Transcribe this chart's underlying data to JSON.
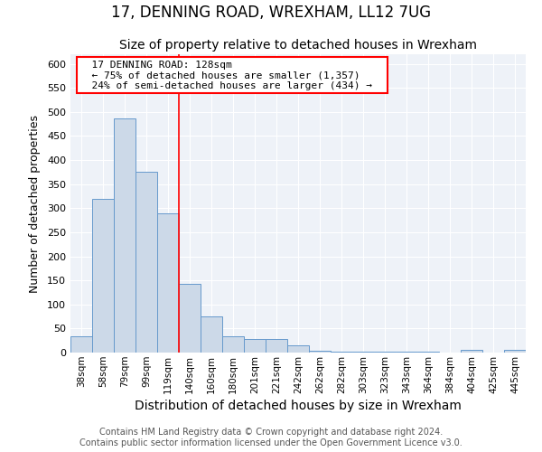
{
  "title1": "17, DENNING ROAD, WREXHAM, LL12 7UG",
  "title2": "Size of property relative to detached houses in Wrexham",
  "xlabel": "Distribution of detached houses by size in Wrexham",
  "ylabel": "Number of detached properties",
  "categories": [
    "38sqm",
    "58sqm",
    "79sqm",
    "99sqm",
    "119sqm",
    "140sqm",
    "160sqm",
    "180sqm",
    "201sqm",
    "221sqm",
    "242sqm",
    "262sqm",
    "282sqm",
    "303sqm",
    "323sqm",
    "343sqm",
    "364sqm",
    "384sqm",
    "404sqm",
    "425sqm",
    "445sqm"
  ],
  "values": [
    33,
    320,
    487,
    375,
    290,
    143,
    76,
    33,
    29,
    29,
    15,
    3,
    2,
    2,
    2,
    2,
    2,
    0,
    6,
    0,
    6
  ],
  "bar_color": "#ccd9e8",
  "bar_edge_color": "#6699cc",
  "annotation_text_line1": "17 DENNING ROAD: 128sqm",
  "annotation_text_line2": "← 75% of detached houses are smaller (1,357)",
  "annotation_text_line3": "24% of semi-detached houses are larger (434) →",
  "annotation_box_color": "white",
  "annotation_box_edge_color": "red",
  "vline_color": "red",
  "vline_x": 4.5,
  "footer_line1": "Contains HM Land Registry data © Crown copyright and database right 2024.",
  "footer_line2": "Contains public sector information licensed under the Open Government Licence v3.0.",
  "background_color": "#eef2f8",
  "ylim": [
    0,
    620
  ],
  "yticks": [
    0,
    50,
    100,
    150,
    200,
    250,
    300,
    350,
    400,
    450,
    500,
    550,
    600
  ],
  "title1_fontsize": 12,
  "title2_fontsize": 10,
  "xlabel_fontsize": 10,
  "ylabel_fontsize": 9,
  "tick_fontsize": 8,
  "xtick_fontsize": 7.5,
  "footer_fontsize": 7,
  "ann_fontsize": 8
}
